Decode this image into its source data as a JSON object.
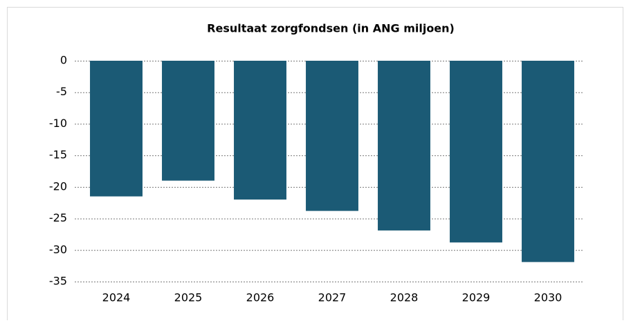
{
  "chart_data": {
    "type": "bar",
    "title": "Resultaat zorgfondsen (in ANG miljoen)",
    "categories": [
      "2024",
      "2025",
      "2026",
      "2027",
      "2028",
      "2029",
      "2030"
    ],
    "values": [
      -21.5,
      -19.0,
      -22.0,
      -23.8,
      -26.9,
      -28.8,
      -31.9
    ],
    "color": "#1b5a75",
    "ylim": [
      -35,
      0
    ],
    "yticks": [
      0,
      -5,
      -10,
      -15,
      -20,
      -25,
      -30,
      -35
    ],
    "grid": true
  }
}
